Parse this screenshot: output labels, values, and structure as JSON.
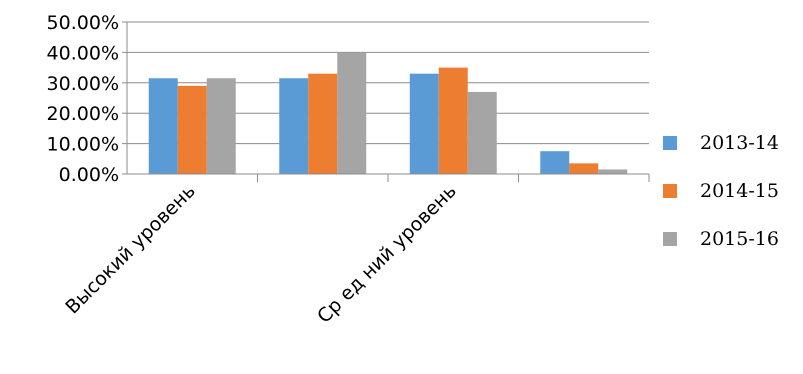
{
  "chart_data": {
    "type": "bar",
    "categories": [
      "Высокий уровень",
      "Средний уровень",
      "Средний уровень",
      ""
    ],
    "category_labels_shown": [
      "Высокий уровень",
      "",
      "Ср ед ний уровень",
      ""
    ],
    "series": [
      {
        "name": "2013-14",
        "color": "#5B9BD5",
        "values": [
          31.5,
          31.5,
          33.0,
          7.5
        ]
      },
      {
        "name": "2014-15",
        "color": "#ED7D31",
        "values": [
          29.0,
          33.0,
          35.0,
          3.5
        ]
      },
      {
        "name": "2015-16",
        "color": "#A5A5A5",
        "values": [
          31.5,
          40.0,
          27.0,
          1.5
        ]
      }
    ],
    "ylim": [
      0,
      50
    ],
    "yticks": [
      "0.00%",
      "10.00%",
      "20.00%",
      "30.00%",
      "40.00%",
      "50.00%"
    ],
    "grid": true,
    "legend_position": "right"
  }
}
